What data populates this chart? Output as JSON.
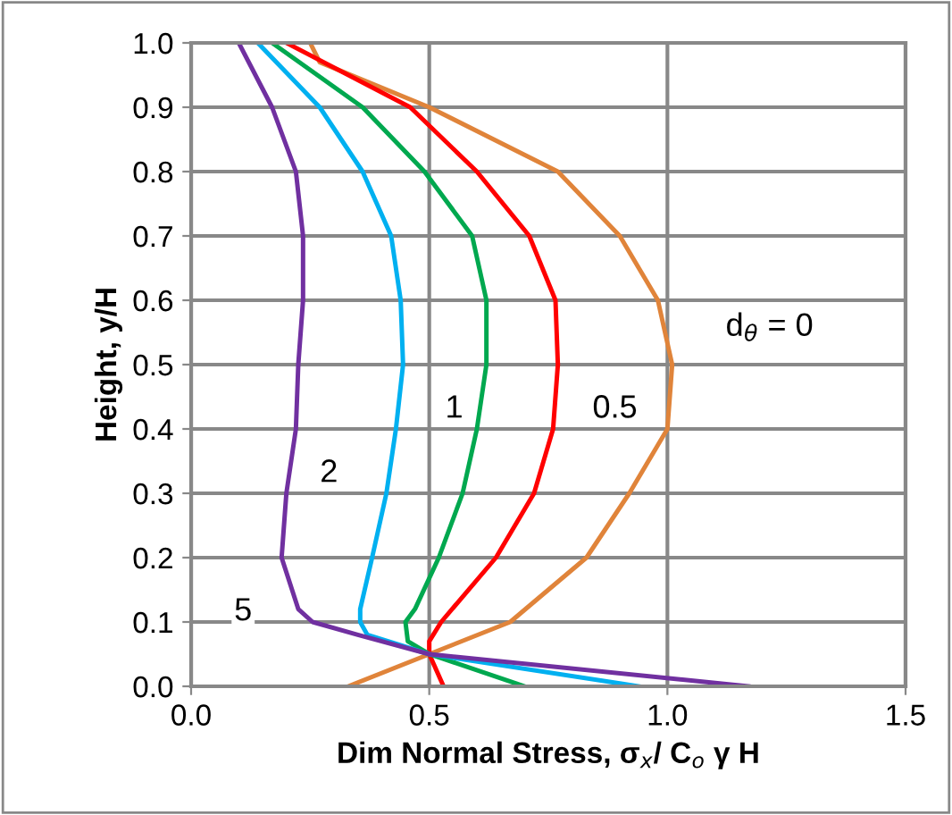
{
  "chart_data": {
    "type": "line",
    "xlabel": "Dim Normal Stress, σ$_{x}$/ C$_{o}$ γ H",
    "ylabel": "Height, y/H",
    "xlim": [
      0,
      1.5
    ],
    "ylim": [
      0,
      1.0
    ],
    "xticks": [
      {
        "value": 0,
        "label": "0.0"
      },
      0.5,
      {
        "value": 1.0,
        "label": "1.0"
      },
      1.5
    ],
    "yticks": [
      {
        "value": 0,
        "label": "0.0"
      },
      0.1,
      0.2,
      0.3,
      0.4,
      0.5,
      0.6,
      0.7,
      0.8,
      0.9,
      {
        "value": 1.0,
        "label": "1.0"
      }
    ],
    "grid": true,
    "legend": false,
    "marker": "none",
    "line_style": "solid",
    "series": [
      {
        "name": "d$_{θ}$ = 0",
        "color": "#e0843a",
        "x": [
          0.33,
          0.5,
          0.67,
          0.83,
          0.92,
          1.0,
          1.01,
          0.98,
          0.9,
          0.77,
          0.5,
          0.27,
          0.25
        ],
        "values": [
          0,
          0.05,
          0.1,
          0.2,
          0.3,
          0.4,
          0.5,
          0.6,
          0.7,
          0.8,
          0.9,
          0.97,
          1.0
        ]
      },
      {
        "name": "0.5",
        "color": "#ff0000",
        "x": [
          0.53,
          0.5,
          0.5,
          0.525,
          0.64,
          0.72,
          0.76,
          0.77,
          0.765,
          0.71,
          0.6,
          0.46,
          0.2
        ],
        "values": [
          0,
          0.05,
          0.07,
          0.1,
          0.2,
          0.3,
          0.4,
          0.5,
          0.6,
          0.7,
          0.8,
          0.9,
          1.0
        ]
      },
      {
        "name": "1",
        "color": "#00a84f",
        "x": [
          0.7,
          0.5,
          0.455,
          0.45,
          0.47,
          0.52,
          0.57,
          0.6,
          0.62,
          0.62,
          0.59,
          0.49,
          0.36,
          0.17
        ],
        "values": [
          0,
          0.05,
          0.07,
          0.1,
          0.12,
          0.2,
          0.3,
          0.4,
          0.5,
          0.6,
          0.7,
          0.8,
          0.9,
          1.0
        ]
      },
      {
        "name": "2",
        "color": "#00b0f0",
        "x": [
          0.94,
          0.5,
          0.37,
          0.355,
          0.355,
          0.38,
          0.41,
          0.43,
          0.445,
          0.44,
          0.42,
          0.36,
          0.27,
          0.14
        ],
        "values": [
          0,
          0.05,
          0.08,
          0.1,
          0.12,
          0.2,
          0.3,
          0.4,
          0.5,
          0.6,
          0.7,
          0.8,
          0.9,
          1.0
        ]
      },
      {
        "name": "5",
        "color": "#7030a0",
        "x": [
          1.17,
          0.5,
          0.35,
          0.255,
          0.225,
          0.19,
          0.2,
          0.22,
          0.225,
          0.235,
          0.235,
          0.22,
          0.17,
          0.1
        ],
        "values": [
          0,
          0.05,
          0.08,
          0.1,
          0.12,
          0.2,
          0.3,
          0.4,
          0.5,
          0.6,
          0.7,
          0.8,
          0.9,
          1.0
        ]
      }
    ]
  }
}
